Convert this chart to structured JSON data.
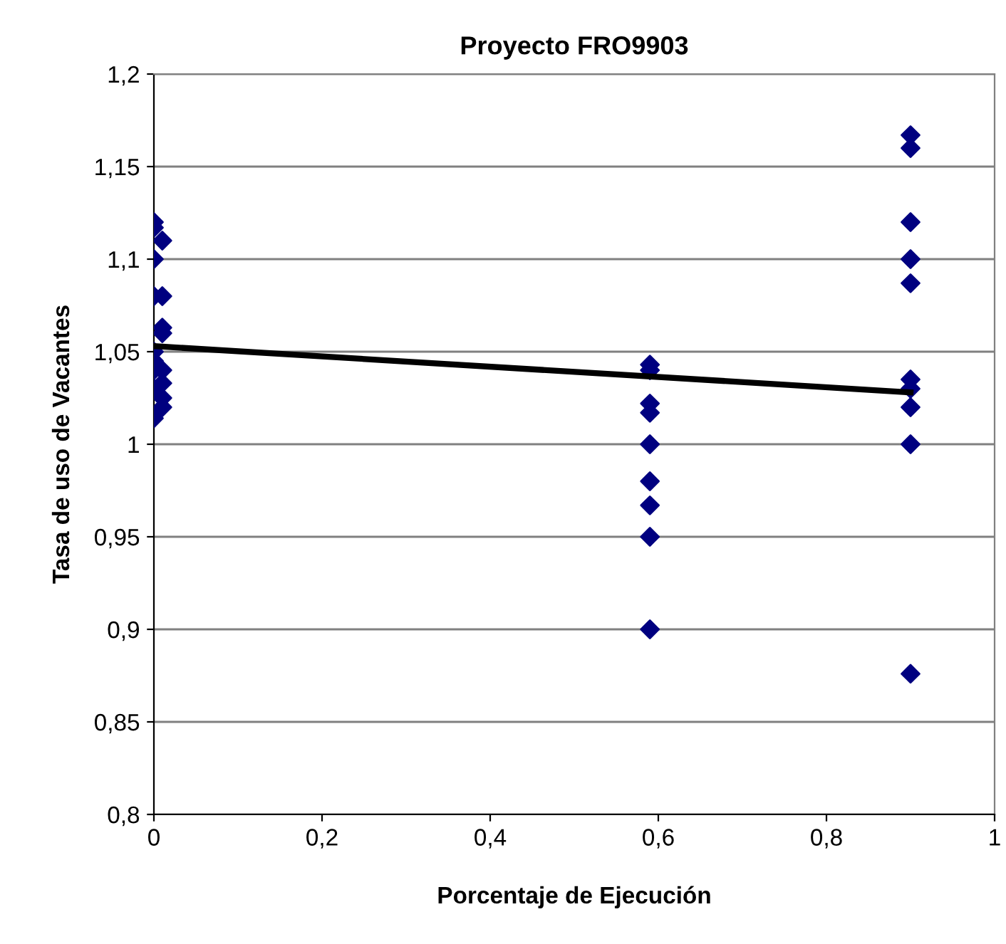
{
  "chart_data": {
    "type": "scatter",
    "title": "Proyecto FRO9903",
    "xlabel": "Porcentaje de Ejecución",
    "ylabel": "Tasa de uso de Vacantes",
    "xlim": [
      0,
      1
    ],
    "xticks": [
      0,
      {
        "value": 0.2,
        "label": "0,2"
      },
      {
        "value": 0.4,
        "label": "0,4"
      },
      {
        "value": 0.6,
        "label": "0,6"
      },
      {
        "value": 0.8,
        "label": "0,8"
      },
      1
    ],
    "ylim": [
      0.8,
      1.2
    ],
    "yticks": [
      {
        "value": 0.8,
        "label": "0,8"
      },
      {
        "value": 0.85,
        "label": "0,85"
      },
      {
        "value": 0.9,
        "label": "0,9"
      },
      {
        "value": 0.95,
        "label": "0,95"
      },
      1,
      {
        "value": 1.05,
        "label": "1,05"
      },
      {
        "value": 1.1,
        "label": "1,1"
      },
      {
        "value": 1.15,
        "label": "1,15"
      },
      {
        "value": 1.2,
        "label": "1,2"
      }
    ],
    "grid": "y",
    "legend": false,
    "series": [
      {
        "color": "#000080",
        "marker": "diamond",
        "x": [
          0,
          0,
          0.01,
          0,
          0,
          0.01,
          0.01,
          0.01,
          0,
          0,
          0,
          0.01,
          0.01,
          0,
          0.01,
          0.01,
          0,
          0.59,
          0.59,
          0.59,
          0.59,
          0.59,
          0.59,
          0.59,
          0.59,
          0.59,
          0.9,
          0.9,
          0.9,
          0.9,
          0.9,
          0.9,
          0.9,
          0.9,
          0.9,
          0.9
        ],
        "values": [
          1.12,
          1.117,
          1.11,
          1.1,
          1.08,
          1.08,
          1.063,
          1.06,
          1.05,
          1.045,
          1.04,
          1.04,
          1.033,
          1.03,
          1.025,
          1.02,
          1.014,
          1.043,
          1.04,
          1.022,
          1.017,
          1.0,
          0.98,
          0.967,
          0.95,
          0.9,
          1.167,
          1.16,
          1.12,
          1.1,
          1.087,
          1.035,
          1.03,
          1.02,
          1.0,
          0.876
        ]
      },
      {
        "type": "line",
        "color": "#000000",
        "marker": "none",
        "line_style": "solid",
        "x": [
          0,
          0.9
        ],
        "values": [
          1.053,
          1.028
        ]
      }
    ]
  }
}
